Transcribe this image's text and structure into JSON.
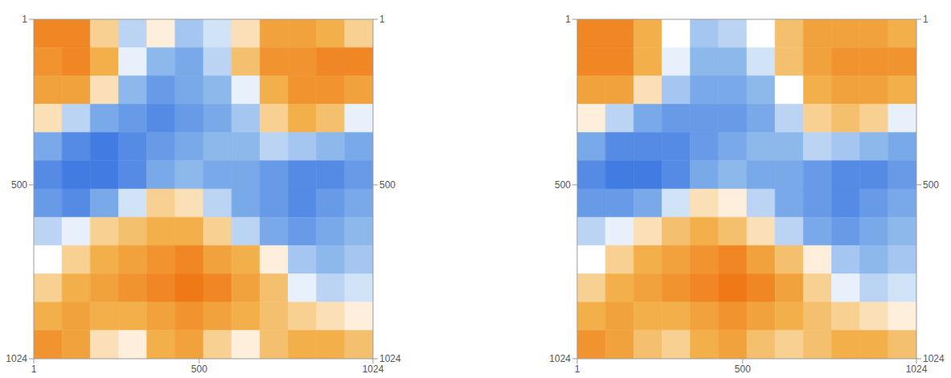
{
  "chart_data": [
    {
      "type": "heatmap",
      "xlim": [
        1,
        1024
      ],
      "ylim": [
        1,
        1024
      ],
      "xticks": [
        1,
        500,
        1024
      ],
      "yticks": [
        1,
        500,
        1024
      ],
      "color_range": [
        -1,
        1
      ],
      "cells": [
        [
          0.8,
          0.8,
          0.3,
          -0.3,
          0.1,
          -0.4,
          -0.2,
          0.2,
          0.6,
          0.6,
          0.5,
          0.3
        ],
        [
          0.7,
          0.8,
          0.5,
          -0.1,
          -0.5,
          -0.6,
          -0.3,
          0.4,
          0.7,
          0.7,
          0.8,
          0.8
        ],
        [
          0.6,
          0.6,
          0.2,
          -0.5,
          -0.7,
          -0.6,
          -0.5,
          -0.1,
          0.5,
          0.7,
          0.7,
          0.6
        ],
        [
          0.2,
          -0.3,
          -0.6,
          -0.7,
          -0.8,
          -0.7,
          -0.6,
          -0.4,
          0.3,
          0.5,
          0.4,
          -0.1
        ],
        [
          -0.6,
          -0.8,
          -0.9,
          -0.8,
          -0.7,
          -0.6,
          -0.5,
          -0.5,
          -0.3,
          -0.4,
          -0.5,
          -0.6
        ],
        [
          -0.8,
          -0.9,
          -0.9,
          -0.8,
          -0.6,
          -0.5,
          -0.6,
          -0.6,
          -0.7,
          -0.8,
          -0.8,
          -0.7
        ],
        [
          -0.7,
          -0.8,
          -0.6,
          -0.2,
          0.3,
          0.2,
          -0.3,
          -0.6,
          -0.7,
          -0.8,
          -0.7,
          -0.6
        ],
        [
          -0.3,
          -0.1,
          0.3,
          0.4,
          0.5,
          0.5,
          0.3,
          -0.3,
          -0.6,
          -0.7,
          -0.6,
          -0.5
        ],
        [
          0.0,
          0.3,
          0.5,
          0.6,
          0.7,
          0.8,
          0.6,
          0.5,
          0.1,
          -0.4,
          -0.5,
          -0.4
        ],
        [
          0.3,
          0.5,
          0.6,
          0.7,
          0.8,
          0.9,
          0.8,
          0.6,
          0.4,
          -0.1,
          -0.3,
          -0.2
        ],
        [
          0.5,
          0.6,
          0.5,
          0.5,
          0.6,
          0.7,
          0.6,
          0.5,
          0.4,
          0.3,
          0.2,
          0.1
        ],
        [
          0.7,
          0.6,
          0.2,
          0.1,
          0.5,
          0.6,
          0.3,
          0.1,
          0.4,
          0.5,
          0.5,
          0.4
        ]
      ]
    },
    {
      "type": "heatmap",
      "xlim": [
        1,
        1024
      ],
      "ylim": [
        1,
        1024
      ],
      "xticks": [
        1,
        500,
        1024
      ],
      "yticks": [
        1,
        500,
        1024
      ],
      "color_range": [
        -1,
        1
      ],
      "cells": [
        [
          0.8,
          0.8,
          0.5,
          0.0,
          -0.4,
          -0.3,
          0.0,
          0.4,
          0.6,
          0.6,
          0.6,
          0.5
        ],
        [
          0.8,
          0.8,
          0.5,
          -0.1,
          -0.5,
          -0.5,
          -0.2,
          0.4,
          0.6,
          0.7,
          0.7,
          0.7
        ],
        [
          0.6,
          0.6,
          0.2,
          -0.4,
          -0.6,
          -0.6,
          -0.5,
          0.0,
          0.5,
          0.6,
          0.6,
          0.5
        ],
        [
          0.1,
          -0.3,
          -0.6,
          -0.7,
          -0.7,
          -0.7,
          -0.6,
          -0.3,
          0.3,
          0.4,
          0.3,
          -0.1
        ],
        [
          -0.6,
          -0.8,
          -0.8,
          -0.8,
          -0.7,
          -0.6,
          -0.5,
          -0.5,
          -0.3,
          -0.4,
          -0.5,
          -0.6
        ],
        [
          -0.8,
          -0.9,
          -0.9,
          -0.8,
          -0.6,
          -0.5,
          -0.6,
          -0.6,
          -0.7,
          -0.8,
          -0.8,
          -0.7
        ],
        [
          -0.7,
          -0.7,
          -0.6,
          -0.2,
          0.2,
          0.1,
          -0.3,
          -0.6,
          -0.7,
          -0.8,
          -0.7,
          -0.6
        ],
        [
          -0.3,
          -0.1,
          0.2,
          0.4,
          0.5,
          0.4,
          0.2,
          -0.3,
          -0.6,
          -0.7,
          -0.6,
          -0.5
        ],
        [
          0.0,
          0.3,
          0.5,
          0.6,
          0.7,
          0.8,
          0.6,
          0.4,
          0.1,
          -0.4,
          -0.5,
          -0.4
        ],
        [
          0.3,
          0.5,
          0.6,
          0.7,
          0.8,
          0.9,
          0.8,
          0.6,
          0.3,
          -0.1,
          -0.3,
          -0.2
        ],
        [
          0.5,
          0.6,
          0.5,
          0.5,
          0.6,
          0.7,
          0.6,
          0.5,
          0.4,
          0.3,
          0.2,
          0.1
        ],
        [
          0.7,
          0.6,
          0.4,
          0.3,
          0.5,
          0.6,
          0.4,
          0.3,
          0.4,
          0.5,
          0.5,
          0.4
        ]
      ]
    }
  ]
}
